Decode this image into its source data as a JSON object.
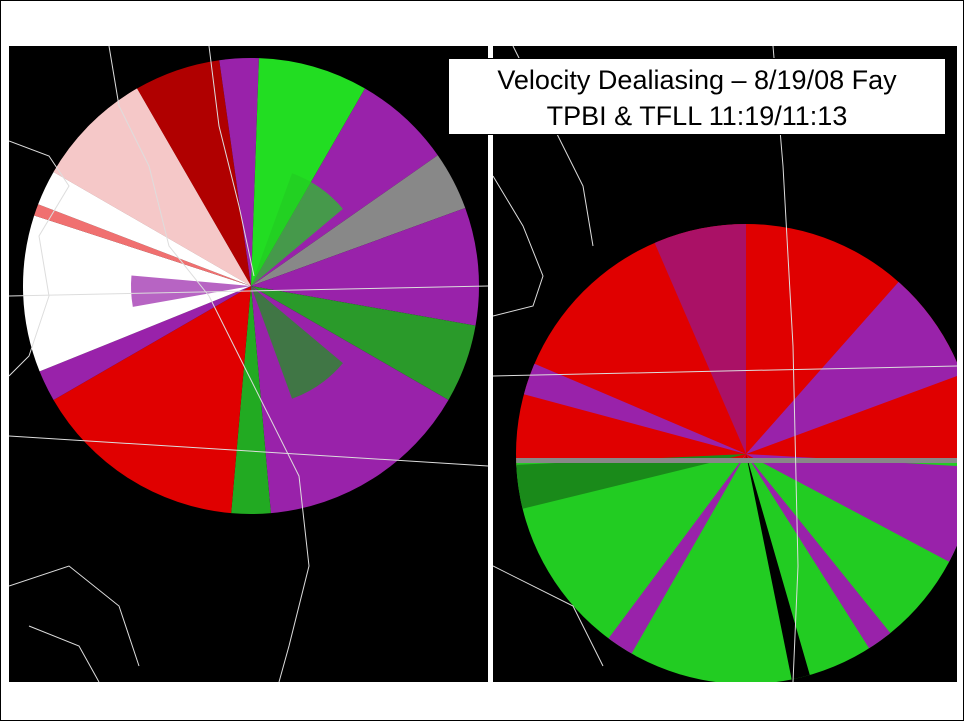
{
  "title": {
    "line1": "Velocity Dealiasing – 8/19/08 Fay",
    "line2": "TPBI & TFLL 11:19/11:13"
  }
}
